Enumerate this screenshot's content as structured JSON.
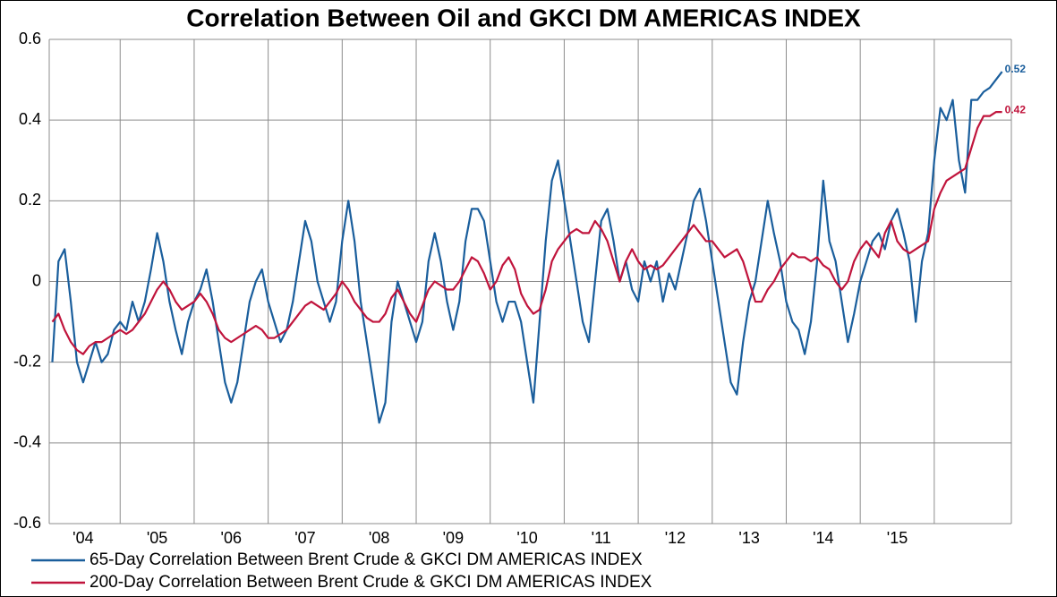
{
  "chart_data": {
    "type": "line",
    "title": "Correlation Between Oil and GKCI DM AMERICAS INDEX",
    "categories": [
      null,
      null,
      null,
      null,
      null,
      "'04",
      null,
      null,
      null,
      null,
      null,
      null,
      null,
      null,
      null,
      null,
      null,
      "'05",
      null,
      null,
      null,
      null,
      null,
      null,
      null,
      null,
      null,
      null,
      null,
      "'06",
      null,
      null,
      null,
      null,
      null,
      null,
      null,
      null,
      null,
      null,
      null,
      "'07",
      null,
      null,
      null,
      null,
      null,
      null,
      null,
      null,
      null,
      null,
      null,
      "'08",
      null,
      null,
      null,
      null,
      null,
      null,
      null,
      null,
      null,
      null,
      null,
      "'09",
      null,
      null,
      null,
      null,
      null,
      null,
      null,
      null,
      null,
      null,
      null,
      "'10",
      null,
      null,
      null,
      null,
      null,
      null,
      null,
      null,
      null,
      null,
      null,
      "'11",
      null,
      null,
      null,
      null,
      null,
      null,
      null,
      null,
      null,
      null,
      null,
      "'12",
      null,
      null,
      null,
      null,
      null,
      null,
      null,
      null,
      null,
      null,
      null,
      "'13",
      null,
      null,
      null,
      null,
      null,
      null,
      null,
      null,
      null,
      null,
      null,
      "'14",
      null,
      null,
      null,
      null,
      null,
      null,
      null,
      null,
      null,
      null,
      null,
      "'15",
      null,
      null,
      null,
      null,
      null,
      null,
      null,
      null,
      null,
      null,
      null,
      null,
      null,
      null,
      null,
      null,
      null,
      null
    ],
    "series": [
      {
        "name": "65-Day Correlation Between Brent Crude & GKCI DM AMERICAS INDEX",
        "color": "#1a5e9c",
        "values": [
          -0.2,
          0.05,
          0.08,
          -0.05,
          -0.2,
          -0.25,
          -0.2,
          -0.15,
          -0.2,
          -0.18,
          -0.12,
          -0.1,
          -0.12,
          -0.05,
          -0.1,
          -0.05,
          0.03,
          0.12,
          0.05,
          -0.05,
          -0.12,
          -0.18,
          -0.1,
          -0.05,
          -0.02,
          0.03,
          -0.05,
          -0.15,
          -0.25,
          -0.3,
          -0.25,
          -0.15,
          -0.05,
          0,
          0.03,
          -0.05,
          -0.1,
          -0.15,
          -0.12,
          -0.05,
          0.05,
          0.15,
          0.1,
          0,
          -0.05,
          -0.1,
          -0.05,
          0.1,
          0.2,
          0.1,
          -0.05,
          -0.15,
          -0.25,
          -0.35,
          -0.3,
          -0.1,
          0,
          -0.05,
          -0.1,
          -0.15,
          -0.1,
          0.05,
          0.12,
          0.05,
          -0.05,
          -0.12,
          -0.05,
          0.1,
          0.18,
          0.18,
          0.15,
          0.05,
          -0.05,
          -0.1,
          -0.05,
          -0.05,
          -0.1,
          -0.2,
          -0.3,
          -0.1,
          0.1,
          0.25,
          0.3,
          0.2,
          0.1,
          0,
          -0.1,
          -0.15,
          0,
          0.15,
          0.18,
          0.1,
          0,
          0.05,
          -0.02,
          -0.05,
          0.05,
          0,
          0.05,
          -0.05,
          0.02,
          -0.02,
          0.05,
          0.12,
          0.2,
          0.23,
          0.15,
          0.05,
          -0.05,
          -0.15,
          -0.25,
          -0.28,
          -0.15,
          -0.05,
          0,
          0.1,
          0.2,
          0.12,
          0.05,
          -0.05,
          -0.1,
          -0.12,
          -0.18,
          -0.1,
          0.05,
          0.25,
          0.1,
          0.05,
          -0.05,
          -0.15,
          -0.08,
          0,
          0.05,
          0.1,
          0.12,
          0.08,
          0.15,
          0.18,
          0.12,
          0.05,
          -0.1,
          0.05,
          0.12,
          0.3,
          0.43,
          0.4,
          0.45,
          0.3,
          0.22,
          0.45,
          0.45,
          0.47,
          0.48,
          0.5,
          0.52,
          null
        ]
      },
      {
        "name": "200-Day Correlation Between Brent Crude & GKCI DM AMERICAS INDEX",
        "color": "#c0143c",
        "values": [
          -0.1,
          -0.08,
          -0.12,
          -0.15,
          -0.17,
          -0.18,
          -0.16,
          -0.15,
          -0.15,
          -0.14,
          -0.13,
          -0.12,
          -0.13,
          -0.12,
          -0.1,
          -0.08,
          -0.05,
          -0.02,
          0,
          -0.02,
          -0.05,
          -0.07,
          -0.06,
          -0.05,
          -0.03,
          -0.05,
          -0.08,
          -0.12,
          -0.14,
          -0.15,
          -0.14,
          -0.13,
          -0.12,
          -0.11,
          -0.12,
          -0.14,
          -0.14,
          -0.13,
          -0.12,
          -0.1,
          -0.08,
          -0.06,
          -0.05,
          -0.06,
          -0.07,
          -0.05,
          -0.03,
          0,
          -0.02,
          -0.05,
          -0.07,
          -0.09,
          -0.1,
          -0.1,
          -0.08,
          -0.04,
          -0.02,
          -0.05,
          -0.08,
          -0.1,
          -0.06,
          -0.02,
          0,
          -0.01,
          -0.02,
          -0.02,
          0,
          0.03,
          0.06,
          0.05,
          0.02,
          -0.02,
          0,
          0.04,
          0.06,
          0.03,
          -0.03,
          -0.06,
          -0.08,
          -0.07,
          -0.02,
          0.05,
          0.08,
          0.1,
          0.12,
          0.13,
          0.12,
          0.12,
          0.15,
          0.13,
          0.1,
          0.05,
          0,
          0.05,
          0.08,
          0.05,
          0.03,
          0.04,
          0.03,
          0.04,
          0.06,
          0.08,
          0.1,
          0.12,
          0.14,
          0.12,
          0.1,
          0.1,
          0.08,
          0.06,
          0.07,
          0.08,
          0.05,
          0,
          -0.05,
          -0.05,
          -0.02,
          0,
          0.03,
          0.05,
          0.07,
          0.06,
          0.06,
          0.05,
          0.06,
          0.04,
          0.03,
          0,
          -0.02,
          0,
          0.05,
          0.08,
          0.1,
          0.08,
          0.06,
          0.12,
          0.15,
          0.1,
          0.08,
          0.07,
          0.08,
          0.09,
          0.1,
          0.18,
          0.22,
          0.25,
          0.26,
          0.27,
          0.28,
          0.33,
          0.38,
          0.41,
          0.41,
          0.42,
          0.42,
          null
        ]
      }
    ],
    "ylim": [
      -0.6,
      0.6
    ],
    "yticks": [
      -0.6,
      -0.4,
      -0.2,
      0,
      0.2,
      0.4,
      0.6
    ],
    "grid": true
  }
}
